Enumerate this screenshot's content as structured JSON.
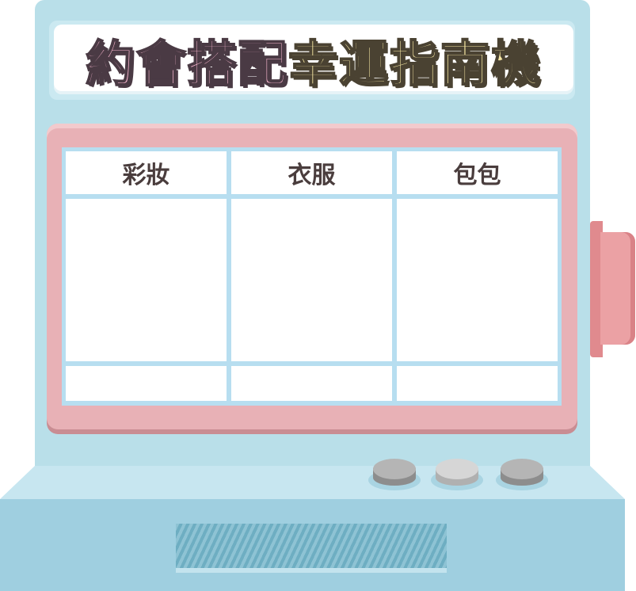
{
  "title": {
    "part_a": "約會搭配",
    "part_b": "幸運指南機"
  },
  "table": {
    "headers": [
      "彩妝",
      "衣服",
      "包包"
    ],
    "body_cells": [
      "",
      "",
      ""
    ],
    "footer_cells": [
      "",
      "",
      ""
    ]
  },
  "colors": {
    "cabinet": "#b9dfe9",
    "screen_frame": "#e8b1b6",
    "title_pink": "#f5b4cc",
    "title_yellow": "#f6e7a3",
    "lever": "#eba1a4"
  },
  "controls": {
    "buttons": [
      {
        "name": "left-knob",
        "color": "dark-gray"
      },
      {
        "name": "middle-knob",
        "color": "light-gray"
      },
      {
        "name": "right-knob",
        "color": "dark-gray"
      }
    ]
  }
}
